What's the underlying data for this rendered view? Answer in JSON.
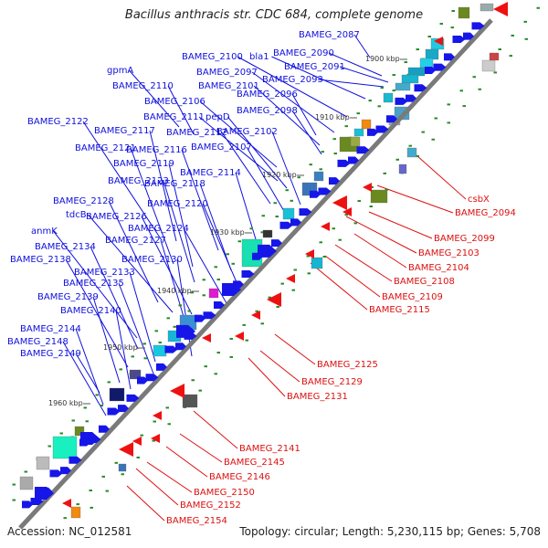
{
  "header": {
    "title": "Bacillus anthracis str. CDC 684, complete genome"
  },
  "footer": {
    "accession": "Accession: NC_012581",
    "summary": "Topology: circular; Length: 5,230,115 bp; Genes: 5,708"
  },
  "colors": {
    "forward_label": "#1010dd",
    "reverse_label": "#dd1010",
    "forward_arrow": "#1616e8",
    "reverse_arrow": "#ee1111",
    "backbone": "#7a7a7a",
    "tick_dot": "#2a8a2a"
  },
  "ticks": [
    "1900 kbp",
    "1910 kbp",
    "1920 kbp",
    "1930 kbp",
    "1940 kbp",
    "1950 kbp",
    "1960 kbp"
  ],
  "forward_labels": [
    "BAMEG_2087",
    "BAMEG_2090",
    "BAMEG_2091",
    "bla1",
    "BAMEG_2100",
    "BAMEG_2093",
    "gpmA",
    "BAMEG_2097",
    "BAMEG_2110",
    "BAMEG_2101",
    "BAMEG_2096",
    "BAMEG_2106",
    "BAMEG_2098",
    "BAMEG_2122",
    "BAMEG_2111",
    "pepD",
    "BAMEG_2117",
    "BAMEG_2112",
    "BAMEG_2102",
    "BAMEG_2121",
    "BAMEG_2116",
    "BAMEG_2107",
    "BAMEG_2119",
    "BAMEG_2114",
    "BAMEG_2123",
    "BAMEG_2118",
    "BAMEG_2128",
    "BAMEG_2120",
    "tdcB",
    "BAMEG_2126",
    "BAMEG_2124",
    "anmK",
    "BAMEG_2127",
    "BAMEG_2134",
    "BAMEG_2138",
    "BAMEG_2130",
    "BAMEG_2133",
    "BAMEG_2135",
    "BAMEG_2139",
    "BAMEG_2140",
    "BAMEG_2144",
    "BAMEG_2148",
    "BAMEG_2149"
  ],
  "reverse_labels": [
    "csbX",
    "BAMEG_2094",
    "BAMEG_2099",
    "BAMEG_2103",
    "BAMEG_2104",
    "BAMEG_2108",
    "BAMEG_2109",
    "BAMEG_2115",
    "BAMEG_2125",
    "BAMEG_2129",
    "BAMEG_2131",
    "BAMEG_2141",
    "BAMEG_2145",
    "BAMEG_2146",
    "BAMEG_2150",
    "BAMEG_2152",
    "BAMEG_2154"
  ]
}
